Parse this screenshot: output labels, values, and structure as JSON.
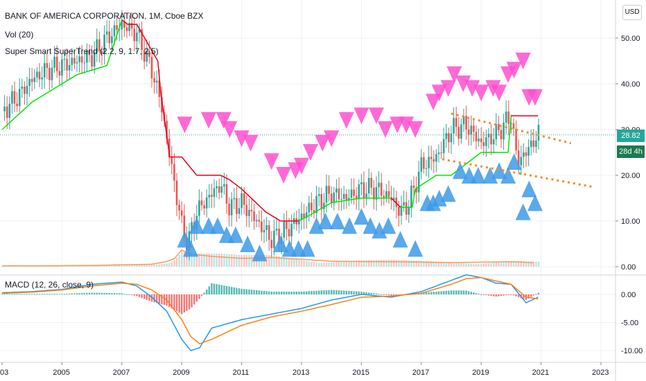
{
  "legend": {
    "main": "BANK OF AMERICA CORPORATION, 1M, Cboe BZX",
    "vol": "Vol (20)",
    "st": "Super Smart SuperTrend (2.2, 9, 1.7, 2.5)",
    "macd": "MACD (12, 26, close, 9)"
  },
  "currency": "USD",
  "badges": {
    "price": "28.82",
    "countdown": "28d 4h"
  },
  "colors": {
    "up": "#26a69a",
    "down": "#ef5350",
    "st_up": "#00e600",
    "st_down": "#e0001b",
    "sell": "#ff4fd0",
    "buy": "#3d9ae8",
    "macd": "#2196f3",
    "signal": "#ff7f0e",
    "badge": "#26a69a",
    "badge_dark": "#1b7a4c"
  },
  "x_axis": [
    "03",
    "2005",
    "2007",
    "2009",
    "2011",
    "2013",
    "2015",
    "2017",
    "2019",
    "2021",
    "2023"
  ],
  "price_axis": [
    "50.00",
    "40.00",
    "30.00",
    "20.00",
    "10.00",
    "0.00"
  ],
  "macd_axis": [
    "0.00",
    "-5.00",
    "-10.00"
  ],
  "chart_data": [
    {
      "type": "line",
      "name": "price",
      "x": [
        2003.0,
        2003.5,
        2004.0,
        2004.5,
        2005.0,
        2005.5,
        2006.0,
        2006.5,
        2007.0,
        2007.5,
        2008.0,
        2008.3,
        2008.6,
        2009.0,
        2009.2,
        2009.5,
        2010.0,
        2010.3,
        2010.6,
        2011.0,
        2011.5,
        2012.0,
        2012.5,
        2013.0,
        2013.5,
        2014.0,
        2014.5,
        2015.0,
        2015.5,
        2016.0,
        2016.3,
        2016.6,
        2017.0,
        2017.5,
        2018.0,
        2018.5,
        2019.0,
        2019.5,
        2020.0,
        2020.2,
        2020.5,
        2020.9
      ],
      "values": [
        34,
        37,
        41,
        43,
        44,
        45,
        46,
        50,
        53,
        51,
        43,
        36,
        24,
        9,
        5,
        12,
        16,
        18,
        13,
        14,
        10,
        6,
        8,
        11,
        14,
        16,
        15,
        17,
        17,
        15,
        12,
        14,
        22,
        24,
        30,
        31,
        27,
        29,
        33,
        23,
        25,
        29
      ],
      "ylim": [
        0,
        55
      ]
    },
    {
      "type": "line",
      "name": "supertrend",
      "x": [
        2003.0,
        2004.0,
        2005.5,
        2006.5,
        2007.0,
        2007.2,
        2007.5,
        2008.2,
        2008.3,
        2008.6,
        2009.0,
        2009.5,
        2010.3,
        2010.6,
        2011.0,
        2011.8,
        2012.3,
        2012.9,
        2013.2,
        2014.0,
        2015.0,
        2016.0,
        2016.3,
        2016.7,
        2016.8,
        2017.5,
        2018.0,
        2019.0,
        2019.9,
        2020.0,
        2020.2,
        2020.9
      ],
      "values": [
        30,
        36,
        42,
        44,
        54,
        53,
        53,
        45,
        38,
        24,
        24,
        20,
        20,
        19,
        17,
        12,
        10,
        10,
        11,
        14,
        15,
        15,
        13,
        13,
        17,
        20,
        20,
        25,
        25,
        33,
        33,
        33
      ],
      "ylim": [
        0,
        55
      ]
    },
    {
      "type": "bar",
      "name": "volume",
      "x": [
        2004,
        2006,
        2008,
        2008.7,
        2009.0,
        2009.3,
        2010,
        2011,
        2012,
        2013,
        2014,
        2016,
        2018,
        2020,
        2020.9
      ],
      "values": [
        0.2,
        0.3,
        0.6,
        1.5,
        4.0,
        3.0,
        2.5,
        2.0,
        2.2,
        1.8,
        1.3,
        1.2,
        1.0,
        1.2,
        0.9
      ]
    },
    {
      "type": "line",
      "name": "MACD",
      "x": [
        2003,
        2004,
        2005,
        2006,
        2007,
        2007.5,
        2008,
        2008.5,
        2009,
        2009.3,
        2009.6,
        2010,
        2011,
        2012,
        2013,
        2014,
        2015,
        2016,
        2017,
        2018,
        2018.5,
        2019,
        2019.5,
        2020,
        2020.5,
        2020.9
      ],
      "macd": [
        0.3,
        0.5,
        0.9,
        1.8,
        2.2,
        1.5,
        -0.5,
        -3,
        -8,
        -10,
        -9.5,
        -6,
        -4.5,
        -3.5,
        -2.5,
        -1,
        0,
        -0.5,
        0.5,
        2.5,
        3.5,
        3.0,
        2.0,
        1.8,
        -1.5,
        -0.5
      ],
      "signal": [
        0.2,
        0.4,
        0.8,
        1.5,
        2.0,
        1.8,
        0.8,
        -1.0,
        -4.5,
        -7.5,
        -8.8,
        -8.0,
        -5.5,
        -4.0,
        -3.0,
        -1.8,
        -0.5,
        -0.3,
        0.2,
        1.8,
        2.8,
        3.0,
        2.4,
        1.8,
        -0.5,
        -0.8
      ],
      "ylim": [
        -10,
        3
      ]
    }
  ]
}
